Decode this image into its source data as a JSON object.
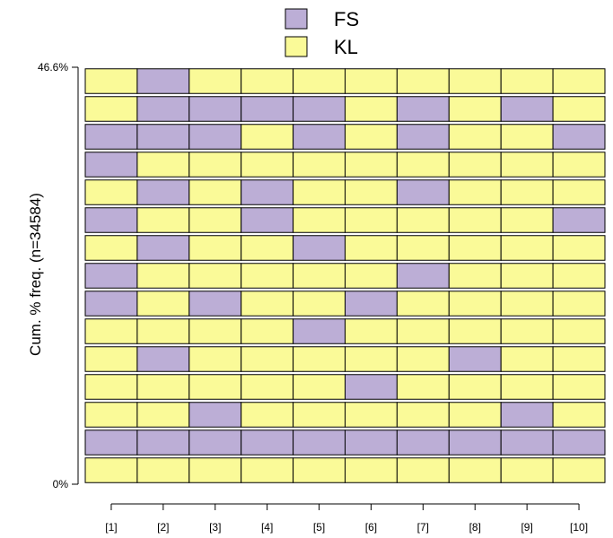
{
  "chart_data": {
    "type": "heatmap",
    "ylabel": "Cum. % freq. (n=34584)",
    "y_tick_labels": [
      "46.6%",
      "0%"
    ],
    "ylim": [
      0,
      46.6
    ],
    "x_tick_labels": [
      "[1]",
      "[2]",
      "[3]",
      "[4]",
      "[5]",
      "[6]",
      "[7]",
      "[8]",
      "[9]",
      "[10]"
    ],
    "legend": {
      "position": "top-center",
      "entries": [
        {
          "label": "FS",
          "color": "#bcaed6"
        },
        {
          "label": "KL",
          "color": "#fafa98"
        }
      ]
    },
    "rows_top_to_bottom": [
      [
        "KL",
        "FS",
        "KL",
        "KL",
        "KL",
        "KL",
        "KL",
        "KL",
        "KL",
        "KL"
      ],
      [
        "KL",
        "FS",
        "FS",
        "FS",
        "FS",
        "KL",
        "FS",
        "KL",
        "FS",
        "KL"
      ],
      [
        "FS",
        "FS",
        "FS",
        "KL",
        "FS",
        "KL",
        "FS",
        "KL",
        "KL",
        "FS"
      ],
      [
        "FS",
        "KL",
        "KL",
        "KL",
        "KL",
        "KL",
        "KL",
        "KL",
        "KL",
        "KL"
      ],
      [
        "KL",
        "FS",
        "KL",
        "FS",
        "KL",
        "KL",
        "FS",
        "KL",
        "KL",
        "KL"
      ],
      [
        "FS",
        "KL",
        "KL",
        "FS",
        "KL",
        "KL",
        "KL",
        "KL",
        "KL",
        "FS"
      ],
      [
        "KL",
        "FS",
        "KL",
        "KL",
        "FS",
        "KL",
        "KL",
        "KL",
        "KL",
        "KL"
      ],
      [
        "FS",
        "KL",
        "KL",
        "KL",
        "KL",
        "KL",
        "FS",
        "KL",
        "KL",
        "KL"
      ],
      [
        "FS",
        "KL",
        "FS",
        "KL",
        "KL",
        "FS",
        "KL",
        "KL",
        "KL",
        "KL"
      ],
      [
        "KL",
        "KL",
        "KL",
        "KL",
        "FS",
        "KL",
        "KL",
        "KL",
        "KL",
        "KL"
      ],
      [
        "KL",
        "FS",
        "KL",
        "KL",
        "KL",
        "KL",
        "KL",
        "FS",
        "KL",
        "KL"
      ],
      [
        "KL",
        "KL",
        "KL",
        "KL",
        "KL",
        "FS",
        "KL",
        "KL",
        "KL",
        "KL"
      ],
      [
        "KL",
        "KL",
        "FS",
        "KL",
        "KL",
        "KL",
        "KL",
        "KL",
        "FS",
        "KL"
      ],
      [
        "FS",
        "FS",
        "FS",
        "FS",
        "FS",
        "FS",
        "FS",
        "FS",
        "FS",
        "FS"
      ],
      [
        "KL",
        "KL",
        "KL",
        "KL",
        "KL",
        "KL",
        "KL",
        "KL",
        "KL",
        "KL"
      ]
    ]
  }
}
